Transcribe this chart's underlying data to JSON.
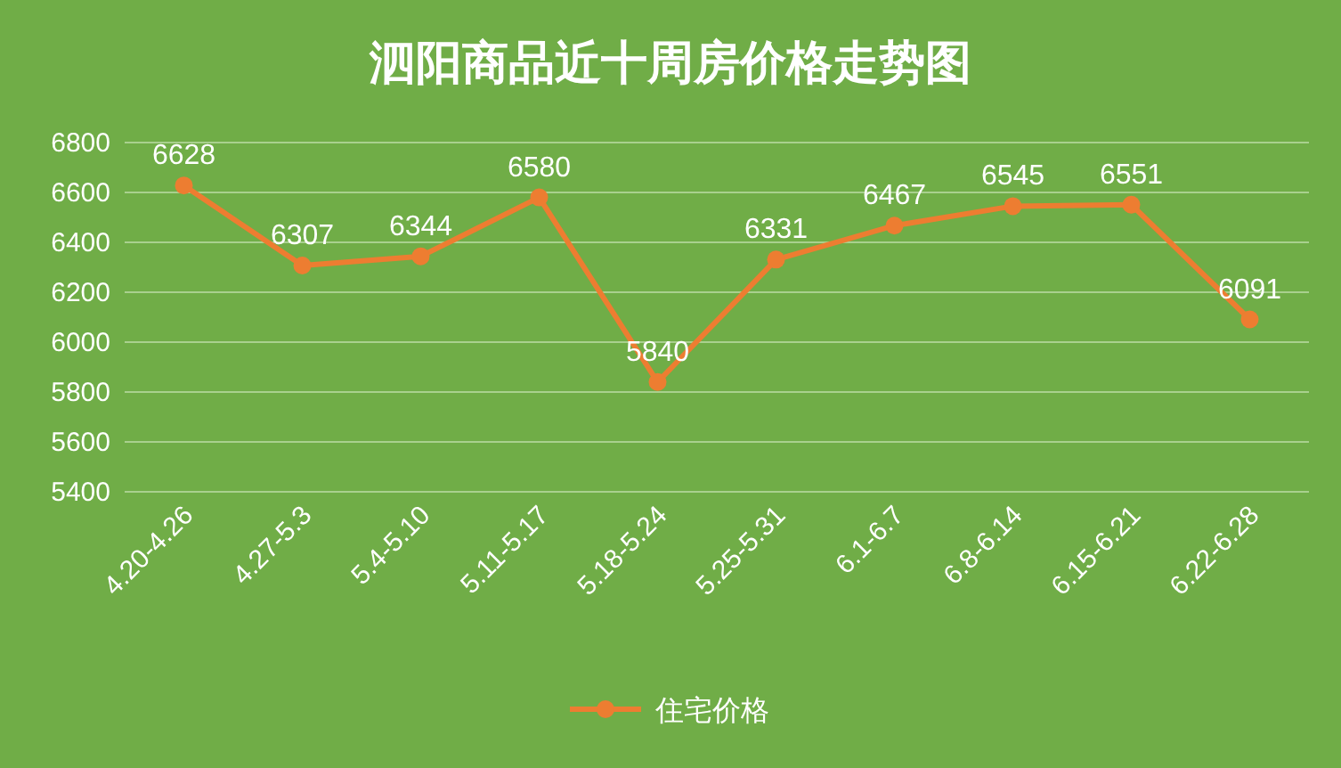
{
  "chart_data": {
    "type": "line",
    "title": "泗阳商品近十周房价格走势图",
    "categories": [
      "4.20-4.26",
      "4.27-5.3",
      "5.4-5.10",
      "5.11-5.17",
      "5.18-5.24",
      "5.25-5.31",
      "6.1-6.7",
      "6.8-6.14",
      "6.15-6.21",
      "6.22-6.28"
    ],
    "series": [
      {
        "name": "住宅价格",
        "color": "#ed7d31",
        "values": [
          6628,
          6307,
          6344,
          6580,
          5840,
          6331,
          6467,
          6545,
          6551,
          6091
        ]
      }
    ],
    "ylim": [
      5400,
      6800
    ],
    "yticks": [
      5400,
      5600,
      5800,
      6000,
      6200,
      6400,
      6600,
      6800
    ],
    "grid": "y",
    "legend": "bottom",
    "marker": "circle",
    "line_style": "solid",
    "data_labels": true
  }
}
